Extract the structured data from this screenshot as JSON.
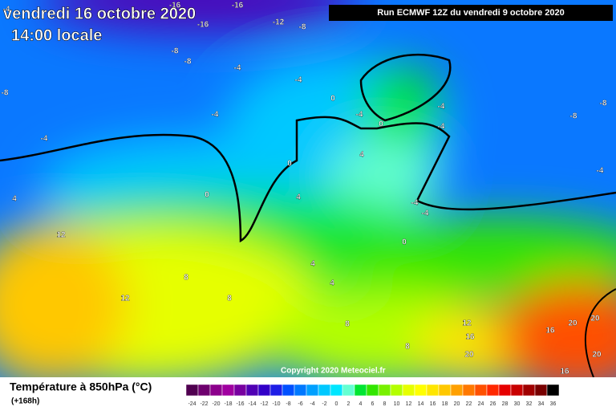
{
  "header": {
    "date": "vendredi 16 octobre 2020",
    "time": "14:00 locale",
    "run": "Run ECMWF 12Z du vendredi 9 octobre 2020"
  },
  "map": {
    "contour_labels": [
      -4,
      -16,
      -16,
      -16,
      -12,
      -8,
      -8,
      -8,
      -8,
      -4,
      -4,
      -4,
      -4,
      0,
      -4,
      0,
      -4,
      -8,
      -8,
      -4,
      -4,
      0,
      4,
      4,
      0,
      4,
      12,
      -4,
      -4,
      0,
      4,
      8,
      8,
      12,
      4,
      8,
      8,
      12,
      16,
      20,
      16,
      20,
      20,
      20,
      16
    ]
  },
  "legend": {
    "title": "Température à 850hPa (°C)",
    "lead": "(+168h)",
    "ticks": [
      -24,
      -22,
      -20,
      -18,
      -16,
      -14,
      -12,
      -10,
      -8,
      -6,
      -4,
      -2,
      0,
      2,
      4,
      6,
      8,
      10,
      12,
      14,
      16,
      18,
      20,
      22,
      24,
      26,
      28,
      30,
      32,
      34,
      36
    ],
    "colors": [
      "#500050",
      "#6e006e",
      "#8c008c",
      "#a000a0",
      "#7800a0",
      "#5000b4",
      "#3200c8",
      "#1e1ee6",
      "#0050ff",
      "#0078ff",
      "#00a0ff",
      "#00c8ff",
      "#00e6ff",
      "#64ffd2",
      "#00e632",
      "#32e600",
      "#78f000",
      "#b4ff00",
      "#e6ff00",
      "#ffff00",
      "#ffe600",
      "#ffc800",
      "#ffa000",
      "#ff7800",
      "#ff5000",
      "#ff2800",
      "#e60000",
      "#c80000",
      "#a00000",
      "#780000",
      "#000000"
    ]
  },
  "copyright": "Copyright 2020 Meteociel.fr"
}
